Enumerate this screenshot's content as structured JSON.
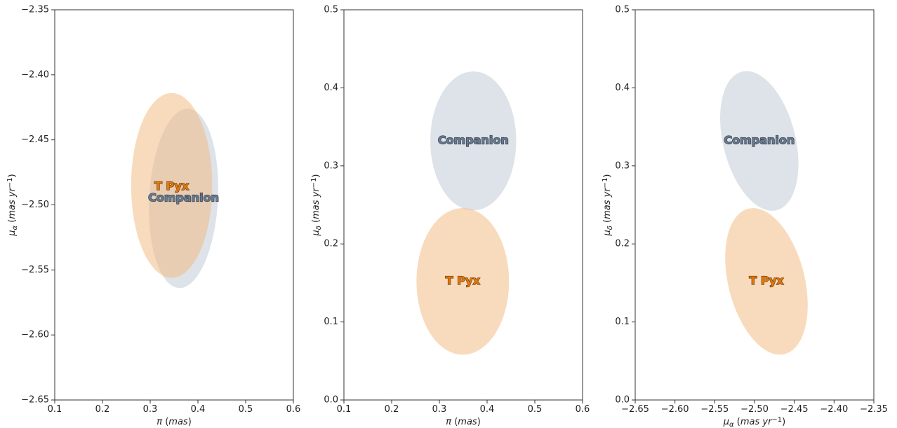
{
  "chart_data": [
    {
      "type": "scatter",
      "title": "",
      "xlabel": "π (mas)",
      "ylabel": "μα (mas yr−1)",
      "xlim": [
        0.1,
        0.6
      ],
      "ylim": [
        -2.65,
        -2.35
      ],
      "xticks": [
        0.1,
        0.2,
        0.3,
        0.4,
        0.5,
        0.6
      ],
      "yticks": [
        -2.65,
        -2.6,
        -2.55,
        -2.5,
        -2.45,
        -2.4,
        -2.35
      ],
      "xtick_labels": [
        "0.1",
        "0.2",
        "0.3",
        "0.4",
        "0.5",
        "0.6"
      ],
      "ytick_labels": [
        "−2.65",
        "−2.60",
        "−2.55",
        "−2.50",
        "−2.45",
        "−2.40",
        "−2.35"
      ],
      "grid": false,
      "ellipses": [
        {
          "name": "Companion",
          "cx": 0.37,
          "cy": -2.495,
          "rx": 0.072,
          "ry": 0.069,
          "angle": 3,
          "color": "#c5ced8",
          "opacity": 0.58,
          "label_x": 0.37,
          "label_y": -2.495,
          "label_color": "#6b7a8f",
          "label_edge": "#2e3a4a"
        },
        {
          "name": "T Pyx",
          "cx": 0.345,
          "cy": -2.485,
          "rx": 0.085,
          "ry": 0.071,
          "angle": 0,
          "color": "#f1b981",
          "opacity": 0.52,
          "label_x": 0.345,
          "label_y": -2.486,
          "label_color": "#e07a10",
          "label_edge": "#6b3300"
        }
      ]
    },
    {
      "type": "scatter",
      "title": "",
      "xlabel": "π (mas)",
      "ylabel": "μδ (mas yr−1)",
      "xlim": [
        0.1,
        0.6
      ],
      "ylim": [
        0.0,
        0.5
      ],
      "xticks": [
        0.1,
        0.2,
        0.3,
        0.4,
        0.5,
        0.6
      ],
      "yticks": [
        0.0,
        0.1,
        0.2,
        0.3,
        0.4,
        0.5
      ],
      "xtick_labels": [
        "0.1",
        "0.2",
        "0.3",
        "0.4",
        "0.5",
        "0.6"
      ],
      "ytick_labels": [
        "0.0",
        "0.1",
        "0.2",
        "0.3",
        "0.4",
        "0.5"
      ],
      "grid": false,
      "ellipses": [
        {
          "name": "Companion",
          "cx": 0.371,
          "cy": 0.332,
          "rx": 0.09,
          "ry": 0.089,
          "angle": 0,
          "color": "#c5ced8",
          "opacity": 0.58,
          "label_x": 0.371,
          "label_y": 0.332,
          "label_color": "#6b7a8f",
          "label_edge": "#2e3a4a"
        },
        {
          "name": "T Pyx",
          "cx": 0.349,
          "cy": 0.152,
          "rx": 0.097,
          "ry": 0.094,
          "angle": 0,
          "color": "#f1b981",
          "opacity": 0.52,
          "label_x": 0.349,
          "label_y": 0.152,
          "label_color": "#e07a10",
          "label_edge": "#6b3300"
        }
      ]
    },
    {
      "type": "scatter",
      "title": "",
      "xlabel": "μα (mas yr−1)",
      "ylabel": "μδ (mas yr−1)",
      "xlim": [
        -2.65,
        -2.35
      ],
      "ylim": [
        0.0,
        0.5
      ],
      "xticks": [
        -2.65,
        -2.6,
        -2.55,
        -2.5,
        -2.45,
        -2.4,
        -2.35
      ],
      "yticks": [
        0.0,
        0.1,
        0.2,
        0.3,
        0.4,
        0.5
      ],
      "xtick_labels": [
        "−2.65",
        "−2.60",
        "−2.55",
        "−2.50",
        "−2.45",
        "−2.40",
        "−2.35"
      ],
      "ytick_labels": [
        "0.0",
        "0.1",
        "0.2",
        "0.3",
        "0.4",
        "0.5"
      ],
      "grid": false,
      "ellipses": [
        {
          "name": "Companion",
          "cx": -2.494,
          "cy": 0.332,
          "rx": 0.0455,
          "ry": 0.0915,
          "angle": -14,
          "color": "#c5ced8",
          "opacity": 0.58,
          "label_x": -2.494,
          "label_y": 0.332,
          "label_color": "#6b7a8f",
          "label_edge": "#2e3a4a"
        },
        {
          "name": "T Pyx",
          "cx": -2.485,
          "cy": 0.152,
          "rx": 0.048,
          "ry": 0.096,
          "angle": -14,
          "color": "#f1b981",
          "opacity": 0.52,
          "label_x": -2.485,
          "label_y": 0.152,
          "label_color": "#e07a10",
          "label_edge": "#6b3300"
        }
      ]
    }
  ]
}
